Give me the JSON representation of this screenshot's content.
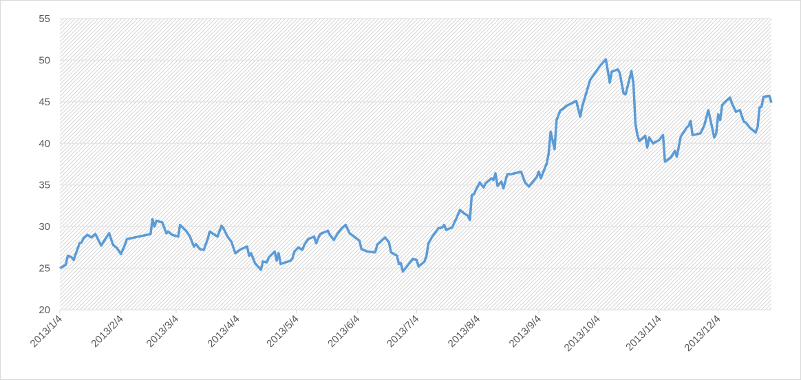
{
  "chart_data": {
    "type": "line",
    "x": [
      "2013/1/4",
      "2013/1/7",
      "2013/1/8",
      "2013/1/10",
      "2013/1/11",
      "2013/1/14",
      "2013/1/15",
      "2013/1/16",
      "2013/1/18",
      "2013/1/20",
      "2013/1/22",
      "2013/1/25",
      "2013/1/27",
      "2013/1/29",
      "2013/1/31",
      "2013/2/2",
      "2013/2/4",
      "2013/2/6",
      "2013/2/7",
      "2013/2/19",
      "2013/2/20",
      "2013/2/21",
      "2013/2/22",
      "2013/2/25",
      "2013/2/27",
      "2013/2/28",
      "2013/3/2",
      "2013/3/5",
      "2013/3/6",
      "2013/3/9",
      "2013/3/11",
      "2013/3/13",
      "2013/3/14",
      "2013/3/16",
      "2013/3/18",
      "2013/3/20",
      "2013/3/21",
      "2013/3/23",
      "2013/3/25",
      "2013/3/27",
      "2013/3/28",
      "2013/3/30",
      "2013/4/1",
      "2013/4/3",
      "2013/4/6",
      "2013/4/9",
      "2013/4/10",
      "2013/4/11",
      "2013/4/13",
      "2013/4/16",
      "2013/4/17",
      "2013/4/19",
      "2013/4/20",
      "2013/4/23",
      "2013/4/24",
      "2013/4/25",
      "2013/4/26",
      "2013/5/1",
      "2013/5/2",
      "2013/5/3",
      "2013/5/5",
      "2013/5/7",
      "2013/5/8",
      "2013/5/10",
      "2013/5/13",
      "2013/5/14",
      "2013/5/16",
      "2013/5/20",
      "2013/5/21",
      "2013/5/23",
      "2013/5/25",
      "2013/5/27",
      "2013/5/29",
      "2013/5/31",
      "2013/6/5",
      "2013/6/6",
      "2013/6/9",
      "2013/6/13",
      "2013/6/14",
      "2013/6/18",
      "2013/6/20",
      "2013/6/21",
      "2013/6/24",
      "2013/6/25",
      "2013/6/26",
      "2013/6/27",
      "2013/6/29",
      "2013/7/2",
      "2013/7/4",
      "2013/7/5",
      "2013/7/8",
      "2013/7/9",
      "2013/7/10",
      "2013/7/12",
      "2013/7/15",
      "2013/7/17",
      "2013/7/18",
      "2013/7/19",
      "2013/7/22",
      "2013/7/24",
      "2013/7/26",
      "2013/7/28",
      "2013/7/30",
      "2013/7/31",
      "2013/8/1",
      "2013/8/2",
      "2013/8/5",
      "2013/8/7",
      "2013/8/8",
      "2013/8/11",
      "2013/8/12",
      "2013/8/13",
      "2013/8/14",
      "2013/8/16",
      "2013/8/17",
      "2013/8/19",
      "2013/8/21",
      "2013/8/26",
      "2013/8/28",
      "2013/8/30",
      "2013/9/1",
      "2013/9/3",
      "2013/9/4",
      "2013/9/5",
      "2013/9/8",
      "2013/9/9",
      "2013/9/10",
      "2013/9/12",
      "2013/9/13",
      "2013/9/15",
      "2013/9/16",
      "2013/9/18",
      "2013/9/23",
      "2013/9/25",
      "2013/9/26",
      "2013/9/30",
      "2013/10/5",
      "2013/10/8",
      "2013/10/9",
      "2013/10/10",
      "2013/10/11",
      "2013/10/14",
      "2013/10/15",
      "2013/10/17",
      "2013/10/18",
      "2013/10/19",
      "2013/10/21",
      "2013/10/22",
      "2013/10/23",
      "2013/10/24",
      "2013/10/25",
      "2013/10/28",
      "2013/10/29",
      "2013/10/30",
      "2013/11/1",
      "2013/11/4",
      "2013/11/6",
      "2013/11/7",
      "2013/11/10",
      "2013/11/12",
      "2013/11/13",
      "2013/11/14",
      "2013/11/15",
      "2013/11/18",
      "2013/11/19",
      "2013/11/20",
      "2013/11/21",
      "2013/11/25",
      "2013/11/27",
      "2013/11/29",
      "2013/12/1",
      "2013/12/2",
      "2013/12/3",
      "2013/12/4",
      "2013/12/5",
      "2013/12/6",
      "2013/12/8",
      "2013/12/10",
      "2013/12/11",
      "2013/12/13",
      "2013/12/15",
      "2013/12/17",
      "2013/12/18",
      "2013/12/20",
      "2013/12/23",
      "2013/12/24",
      "2013/12/25",
      "2013/12/26",
      "2013/12/27",
      "2013/12/30",
      "2013/12/31"
    ],
    "series": [
      {
        "color": "#5b9bd5",
        "values": [
          25.0,
          25.4,
          26.5,
          26.3,
          26.0,
          28.0,
          28.1,
          28.6,
          29.0,
          28.7,
          29.1,
          27.7,
          28.5,
          29.2,
          27.8,
          27.4,
          26.7,
          27.8,
          28.5,
          29.1,
          30.9,
          30.0,
          30.7,
          30.5,
          29.2,
          29.4,
          29.0,
          28.8,
          30.2,
          29.5,
          28.8,
          27.6,
          27.9,
          27.3,
          27.2,
          28.5,
          29.4,
          29.1,
          28.8,
          30.1,
          29.8,
          28.8,
          28.2,
          26.8,
          27.3,
          27.6,
          26.5,
          26.8,
          25.6,
          24.8,
          25.8,
          25.7,
          26.3,
          27.0,
          25.9,
          26.8,
          25.5,
          25.9,
          26.2,
          27.0,
          27.5,
          27.2,
          27.8,
          28.5,
          28.8,
          28.0,
          29.1,
          29.5,
          29.0,
          28.4,
          29.2,
          29.8,
          30.2,
          29.2,
          28.3,
          27.3,
          27.0,
          26.9,
          27.8,
          28.7,
          28.1,
          26.9,
          26.5,
          25.5,
          25.6,
          24.6,
          25.2,
          26.1,
          26.0,
          25.2,
          25.8,
          26.5,
          28.0,
          28.8,
          29.8,
          29.9,
          30.2,
          29.6,
          29.9,
          30.9,
          32.0,
          31.6,
          31.3,
          30.8,
          33.8,
          33.9,
          35.3,
          34.7,
          35.2,
          35.8,
          35.6,
          36.4,
          34.9,
          35.4,
          34.6,
          36.3,
          36.3,
          36.6,
          35.3,
          34.8,
          35.4,
          36.0,
          36.6,
          35.8,
          37.6,
          38.8,
          41.4,
          39.3,
          42.8,
          44.0,
          44.1,
          44.5,
          45.1,
          43.2,
          44.4,
          47.6,
          49.3,
          50.1,
          48.7,
          47.3,
          48.6,
          48.9,
          48.5,
          46.0,
          45.9,
          46.8,
          48.7,
          47.2,
          42.4,
          41.0,
          40.3,
          40.9,
          39.5,
          40.7,
          40.0,
          40.4,
          41.0,
          37.8,
          38.3,
          39.1,
          38.4,
          39.6,
          40.8,
          41.9,
          42.1,
          42.7,
          41.0,
          41.2,
          42.2,
          44.0,
          41.8,
          40.7,
          41.2,
          43.5,
          42.8,
          44.6,
          45.1,
          45.5,
          44.8,
          43.8,
          44.0,
          42.6,
          42.5,
          41.9,
          41.3,
          42.0,
          44.3,
          44.4,
          45.6,
          45.7,
          44.9
        ]
      }
    ],
    "xlim": [
      "2013/1/4",
      "2013/12/31"
    ],
    "xticks": [
      "2013/1/4",
      "2013/2/4",
      "2013/3/4",
      "2013/4/4",
      "2013/5/4",
      "2013/6/4",
      "2013/7/4",
      "2013/8/4",
      "2013/9/4",
      "2013/10/4",
      "2013/11/4",
      "2013/12/4"
    ],
    "ylim": [
      20,
      55
    ],
    "yticks": [
      20,
      25,
      30,
      35,
      40,
      45,
      50,
      55
    ],
    "grid": true
  }
}
